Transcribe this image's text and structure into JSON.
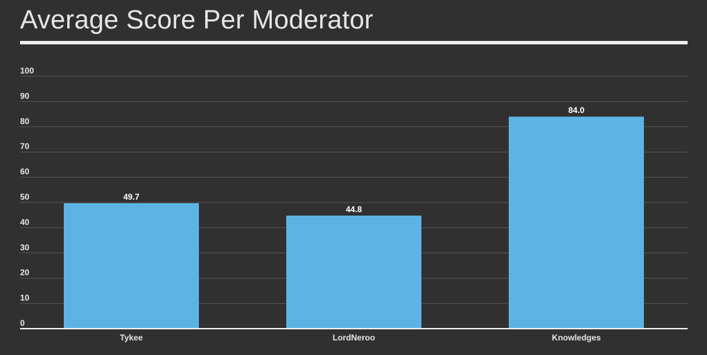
{
  "title": "Average Score Per Moderator",
  "colors": {
    "background": "#303030",
    "bar": "#5db4e4",
    "grid": "#555555",
    "axis": "#eeeeee",
    "text": "#e6e6e6"
  },
  "chart_data": {
    "type": "bar",
    "title": "Average Score Per Moderator",
    "xlabel": "",
    "ylabel": "",
    "categories": [
      "Tykee",
      "LordNeroo",
      "Knowledges"
    ],
    "values": [
      49.7,
      44.8,
      84.0
    ],
    "value_labels": [
      "49.7",
      "44.8",
      "84.0"
    ],
    "ylim": [
      0,
      100
    ],
    "yticks": [
      0,
      10,
      20,
      30,
      40,
      50,
      60,
      70,
      80,
      90,
      100
    ],
    "ytick_labels": [
      "0",
      "10",
      "20",
      "30",
      "40",
      "50",
      "60",
      "70",
      "80",
      "90",
      "100"
    ],
    "grid": true,
    "legend": "none"
  }
}
